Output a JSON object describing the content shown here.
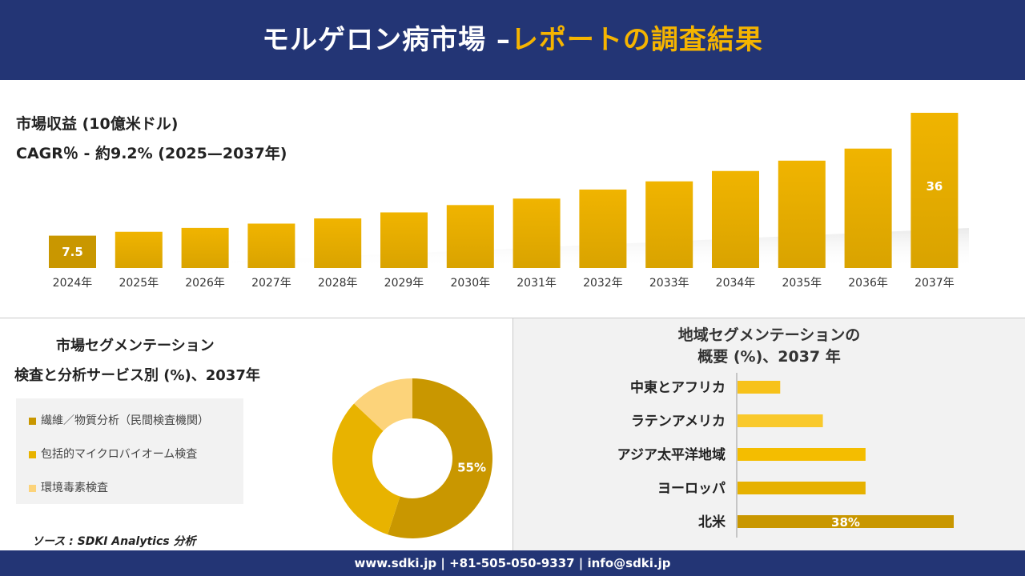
{
  "header": {
    "title_main": "モルゲロン病市場 –",
    "title_accent": "レポートの調査結果"
  },
  "revenue": {
    "label1": "市場収益 (10億米ドル)",
    "label2": "CAGR％ - 約9.2% (2025—2037年)"
  },
  "chart_data": [
    {
      "type": "bar",
      "categories": [
        "2024年",
        "2025年",
        "2026年",
        "2027年",
        "2028年",
        "2029年",
        "2030年",
        "2031年",
        "2032年",
        "2033年",
        "2034年",
        "2035年",
        "2036年",
        "2037年"
      ],
      "values": [
        7.5,
        8.4,
        9.3,
        10.3,
        11.5,
        12.9,
        14.6,
        16.1,
        18.2,
        20.1,
        22.5,
        24.9,
        27.7,
        36
      ],
      "data_labels": {
        "0": "7.5",
        "13": "36"
      },
      "colors": {
        "bar": "#f0b400",
        "first_bar": "#c99700",
        "gradient_bottom": "#d9a300"
      }
    },
    {
      "type": "pie",
      "title_line1": "市場セグメンテーション",
      "title_line2": "検査と分析サービス別 (%)、2037年",
      "labels": [
        "繊維／物質分析（民間検査機関）",
        "包括的マイクロバイオーム検査",
        "環境毒素検査"
      ],
      "values": [
        55,
        32,
        13
      ],
      "data_labels": {
        "0": "55%"
      },
      "colors": [
        "#c99700",
        "#e8b300",
        "#fcd37a"
      ]
    },
    {
      "type": "bar",
      "orientation": "horizontal",
      "title_line1": "地域セグメンテーションの",
      "title_line2": "概要 (%)、2037 年",
      "categories": [
        "中東とアフリカ",
        "ラテンアメリカ",
        "アジア太平洋地域",
        "ヨーロッパ",
        "北米"
      ],
      "values": [
        7.5,
        15,
        22.5,
        22.5,
        38
      ],
      "data_labels": {
        "4": "38%"
      },
      "colors": [
        "#f7c21a",
        "#f9c92c",
        "#f4bd00",
        "#e6b100",
        "#c99700"
      ]
    }
  ],
  "footer": {
    "text": "www.sdki.jp | +81-505-050-9337 | info@sdki.jp"
  },
  "source": "ソース : SDKI Analytics 分析"
}
